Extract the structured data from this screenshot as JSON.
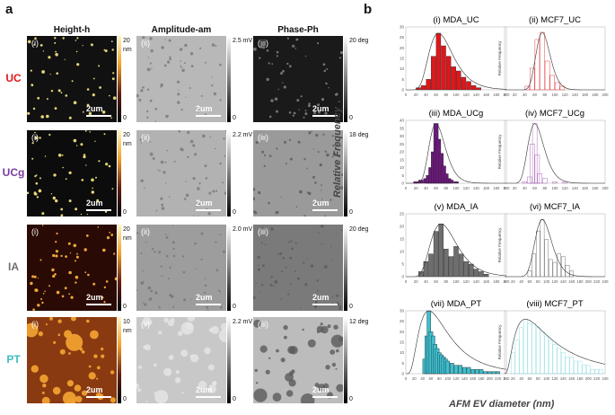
{
  "panel_a": {
    "letter": "a",
    "columns": [
      "Height-h",
      "Amplitude-am",
      "Phase-Ph"
    ],
    "rows": [
      {
        "label": "UC",
        "color": "#e0161b",
        "height_scale": [
          "20",
          "nm",
          "0"
        ],
        "amp_scale": "2.5 mV",
        "phase_scale": "20 deg",
        "sub": [
          "(i)",
          "(ii)",
          "(iii)"
        ],
        "scalebar": "2um"
      },
      {
        "label": "UCg",
        "color": "#7b3aa0",
        "height_scale": [
          "20",
          "nm",
          "0"
        ],
        "amp_scale": "2.2 mV",
        "phase_scale": "18 deg",
        "sub": [
          "(i)",
          "(ii)",
          "(iii)"
        ],
        "scalebar": "2um"
      },
      {
        "label": "IA",
        "color": "#707070",
        "height_scale": [
          "20",
          "nm",
          "0"
        ],
        "amp_scale": "2.0 mV",
        "phase_scale": "20 deg",
        "sub": [
          "(i)",
          "(ii)",
          "(iii)"
        ],
        "scalebar": "2um"
      },
      {
        "label": "PT",
        "color": "#3fbfbf",
        "height_scale": [
          "10",
          "nm",
          "0"
        ],
        "amp_scale": "2.2 mV",
        "phase_scale": "12 deg",
        "sub": [
          "(i)",
          "(ii)",
          "(iii)"
        ],
        "scalebar": "2um"
      }
    ],
    "zero": "0"
  },
  "panel_b": {
    "letter": "b",
    "ylabel": "Relative Frequency",
    "xlabel": "AFM EV diameter (nm)",
    "small_ylabel": "Relative Frequency"
  },
  "chart_data": [
    {
      "type": "bar",
      "title": "(i) MDA_UC",
      "color": "#e0161b",
      "filled": true,
      "x": [
        25,
        35,
        45,
        55,
        65,
        75,
        85,
        95,
        105,
        115,
        125,
        135,
        145
      ],
      "values": [
        1,
        2,
        5,
        16,
        27,
        21,
        16,
        11,
        9,
        6,
        4,
        2,
        1
      ],
      "xlim": [
        0,
        200
      ],
      "xticks": [
        0,
        20,
        40,
        60,
        80,
        100,
        120,
        140,
        160,
        180,
        200
      ],
      "ylim": [
        0,
        30
      ],
      "yticks": [
        0,
        5,
        10,
        15,
        20,
        25,
        30
      ]
    },
    {
      "type": "bar",
      "title": "(ii) MCF7_UC",
      "color": "#e0161b",
      "filled": false,
      "x": [
        45,
        55,
        65,
        75,
        85,
        95,
        105,
        115
      ],
      "values": [
        2,
        12,
        28,
        32,
        16,
        8,
        4,
        2
      ],
      "xlim": [
        0,
        200
      ],
      "xticks": [
        0,
        20,
        40,
        60,
        80,
        100,
        120,
        140,
        160,
        180,
        200
      ],
      "ylim": [
        0,
        35
      ]
    },
    {
      "type": "bar",
      "title": "(iii) MDA_UCg",
      "color": "#6a1a7a",
      "filled": true,
      "x": [
        20,
        30,
        40,
        45,
        50,
        55,
        60,
        65,
        70,
        75,
        80,
        85,
        90,
        100
      ],
      "values": [
        1,
        2,
        3,
        5,
        10,
        20,
        38,
        28,
        19,
        11,
        6,
        3,
        2,
        1
      ],
      "xlim": [
        0,
        200
      ],
      "xticks": [
        0,
        20,
        40,
        60,
        80,
        100,
        120,
        140,
        160,
        180,
        200
      ],
      "ylim": [
        0,
        40
      ],
      "yticks": [
        0,
        5,
        10,
        15,
        20,
        25,
        30,
        35,
        40
      ]
    },
    {
      "type": "bar",
      "title": "(iv) MCF7_UCg",
      "color": "#9a4aa8",
      "filled": false,
      "x": [
        40,
        50,
        55,
        60,
        65,
        70,
        80,
        100,
        120
      ],
      "values": [
        1,
        4,
        25,
        38,
        18,
        6,
        3,
        1,
        1
      ],
      "xlim": [
        0,
        200
      ],
      "xticks": [
        0,
        20,
        40,
        60,
        80,
        100,
        120,
        140,
        160,
        180,
        200
      ],
      "ylim": [
        0,
        40
      ]
    },
    {
      "type": "bar",
      "title": "(v) MDA_IA",
      "color": "#6e6e6e",
      "filled": true,
      "x": [
        30,
        40,
        50,
        60,
        70,
        80,
        90,
        100,
        110,
        120,
        130,
        140,
        150,
        160
      ],
      "values": [
        2,
        6,
        9,
        18,
        21,
        11,
        8,
        12,
        9,
        6,
        5,
        3,
        2,
        1
      ],
      "xlim": [
        0,
        200
      ],
      "xticks": [
        0,
        20,
        40,
        60,
        80,
        100,
        120,
        140,
        160,
        180,
        200
      ],
      "ylim": [
        0,
        25
      ],
      "yticks": [
        0,
        5,
        10,
        15,
        20,
        25
      ]
    },
    {
      "type": "bar",
      "title": "(vi) MCF7_IA",
      "color": "#555555",
      "filled": false,
      "x": [
        60,
        70,
        80,
        90,
        100,
        110,
        120,
        130,
        140,
        150,
        160
      ],
      "values": [
        2,
        8,
        16,
        20,
        13,
        6,
        5,
        8,
        7,
        4,
        2
      ],
      "xlim": [
        0,
        240
      ],
      "xticks": [
        0,
        20,
        40,
        60,
        80,
        100,
        120,
        140,
        160,
        180,
        200,
        220,
        240
      ],
      "ylim": [
        0,
        22
      ]
    },
    {
      "type": "bar",
      "title": "(vii) MDA_PT",
      "color": "#3cc0d0",
      "filled": true,
      "x": [
        45,
        50,
        55,
        60,
        65,
        70,
        75,
        80,
        85,
        90,
        95,
        100,
        110,
        120,
        130,
        140,
        150,
        160,
        170,
        180,
        190,
        200,
        210,
        220
      ],
      "values": [
        7,
        18,
        30,
        20,
        18,
        14,
        12,
        10,
        9,
        8,
        7,
        6,
        5,
        4,
        4,
        3,
        3,
        2,
        2,
        2,
        1,
        1,
        1,
        1
      ],
      "xlim": [
        0,
        240
      ],
      "xticks": [
        0,
        20,
        40,
        60,
        80,
        100,
        120,
        140,
        160,
        180,
        200,
        220,
        240
      ],
      "ylim": [
        0,
        30
      ],
      "yticks": [
        0,
        5,
        10,
        15,
        20,
        25,
        30
      ]
    },
    {
      "type": "bar",
      "title": "(viii) MCF7_PT",
      "color": "#7fd8e0",
      "filled": false,
      "x": [
        20,
        30,
        40,
        50,
        60,
        70,
        80,
        90,
        100,
        110,
        120,
        130,
        140,
        150,
        160,
        170,
        180,
        190,
        200,
        210,
        220,
        230
      ],
      "values": [
        5,
        8,
        11,
        13,
        12,
        12,
        11,
        10,
        9,
        8,
        7,
        6,
        5,
        4,
        4,
        3,
        3,
        2,
        2,
        1,
        1,
        1
      ],
      "xlim": [
        0,
        240
      ],
      "xticks": [
        0,
        20,
        40,
        60,
        80,
        100,
        120,
        140,
        160,
        180,
        200,
        220,
        240
      ],
      "ylim": [
        0,
        15
      ]
    }
  ]
}
